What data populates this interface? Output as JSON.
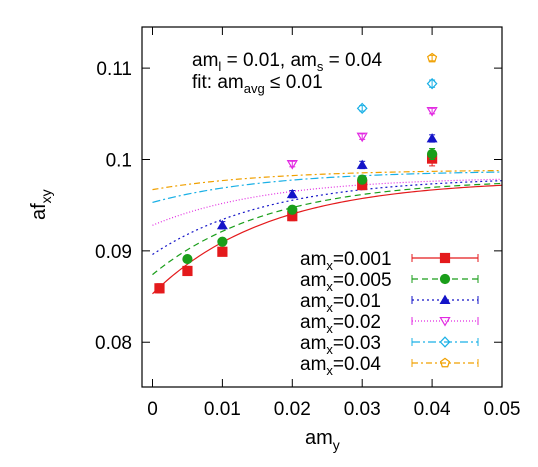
{
  "chart_data": {
    "type": "scatter",
    "xlabel": "am",
    "xlabel_sub": "y",
    "ylabel": "af",
    "ylabel_sub": "xy",
    "xlim": [
      -0.0015,
      0.05
    ],
    "ylim": [
      0.0751,
      0.1145
    ],
    "x_ticks": [
      0,
      0.01,
      0.02,
      0.03,
      0.04,
      0.05
    ],
    "x_tick_labels": [
      "0",
      "0.01",
      "0.02",
      "0.03",
      "0.04",
      "0.05"
    ],
    "y_ticks": [
      0.08,
      0.09,
      0.1,
      0.11
    ],
    "y_tick_labels": [
      "0.08",
      "0.09",
      "0.1",
      "0.11"
    ],
    "grid": false,
    "legend_position": "bottom-right",
    "annotation": {
      "line1": {
        "a": "am",
        "a_sub": "l",
        "b": " = 0.01, am",
        "b_sub": "s",
        "c": " = 0.04"
      },
      "line2": {
        "a": "fit: am",
        "a_sub": "avg",
        "b": " ≤ 0.01"
      }
    },
    "series": [
      {
        "name_main": "am",
        "name_sub": "x",
        "name_val": "=0.001",
        "color": "#e41a1c",
        "marker": "square-filled",
        "dash": "",
        "fit": {
          "c0": 0.0853,
          "c1": 0.0125,
          "k": 60
        },
        "points": [
          {
            "x": 0.001,
            "y": 0.0859,
            "err": 0.0005
          },
          {
            "x": 0.005,
            "y": 0.0878,
            "err": 0.0005
          },
          {
            "x": 0.01,
            "y": 0.0899,
            "err": 0.0004
          },
          {
            "x": 0.02,
            "y": 0.0938,
            "err": 0.0005
          },
          {
            "x": 0.03,
            "y": 0.0972,
            "err": 0.0005
          },
          {
            "x": 0.04,
            "y": 0.1001,
            "err": 0.0008
          }
        ]
      },
      {
        "name_main": "am",
        "name_sub": "x",
        "name_val": "=0.005",
        "color": "#1a9e1a",
        "marker": "circle-filled",
        "dash": "6,4",
        "fit": {
          "c0": 0.0874,
          "c1": 0.0105,
          "k": 60
        },
        "points": [
          {
            "x": 0.005,
            "y": 0.0891,
            "err": 0.0003
          },
          {
            "x": 0.01,
            "y": 0.091,
            "err": 0.0003
          },
          {
            "x": 0.02,
            "y": 0.0945,
            "err": 0.0004
          },
          {
            "x": 0.03,
            "y": 0.0978,
            "err": 0.0004
          },
          {
            "x": 0.04,
            "y": 0.1006,
            "err": 0.0006
          }
        ]
      },
      {
        "name_main": "am",
        "name_sub": "x",
        "name_val": "=0.01",
        "color": "#1414c8",
        "marker": "triangle-filled",
        "dash": "2,3",
        "fit": {
          "c0": 0.0896,
          "c1": 0.0085,
          "k": 60
        },
        "points": [
          {
            "x": 0.01,
            "y": 0.0928,
            "err": 0.0004
          },
          {
            "x": 0.02,
            "y": 0.0962,
            "err": 0.0004
          },
          {
            "x": 0.03,
            "y": 0.0994,
            "err": 0.0004
          },
          {
            "x": 0.04,
            "y": 0.1023,
            "err": 0.0004
          }
        ]
      },
      {
        "name_main": "am",
        "name_sub": "x",
        "name_val": "=0.02",
        "color": "#e22ae2",
        "marker": "triangle-down-open",
        "dash": "1,2",
        "fit": {
          "c0": 0.0928,
          "c1": 0.0053,
          "k": 60
        },
        "points": [
          {
            "x": 0.02,
            "y": 0.0995,
            "err": 0.0003
          },
          {
            "x": 0.03,
            "y": 0.1025,
            "err": 0.0003
          },
          {
            "x": 0.04,
            "y": 0.1053,
            "err": 0.0003
          }
        ]
      },
      {
        "name_main": "am",
        "name_sub": "x",
        "name_val": "=0.03",
        "color": "#1ab0e6",
        "marker": "diamond-open",
        "dash": "8,3,2,3",
        "fit": {
          "c0": 0.0953,
          "c1": 0.0035,
          "k": 60
        },
        "points": [
          {
            "x": 0.03,
            "y": 0.1056,
            "err": 0.0003
          },
          {
            "x": 0.04,
            "y": 0.1083,
            "err": 0.0004
          }
        ]
      },
      {
        "name_main": "am",
        "name_sub": "x",
        "name_val": "=0.04",
        "color": "#f0a000",
        "marker": "pentagon-open",
        "dash": "6,3,2,3",
        "fit": {
          "c0": 0.0967,
          "c1": 0.0022,
          "k": 60
        },
        "points": [
          {
            "x": 0.04,
            "y": 0.1111,
            "err": 0.0003
          }
        ]
      }
    ]
  }
}
